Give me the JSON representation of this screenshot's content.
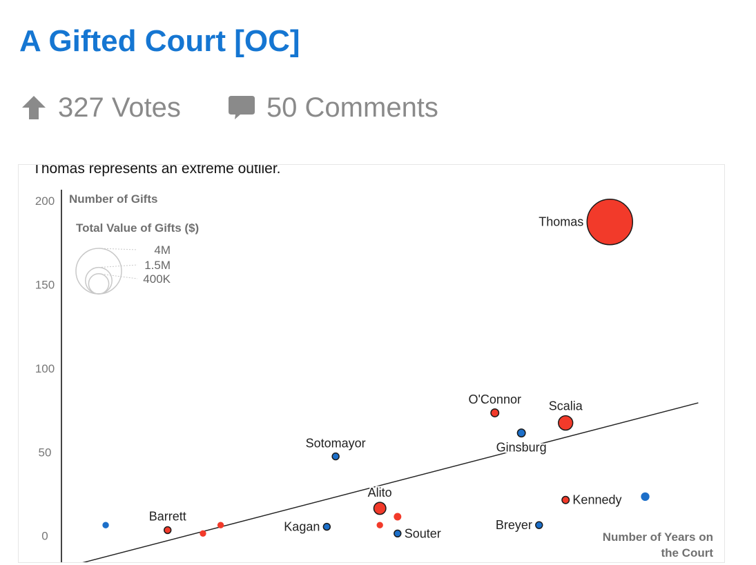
{
  "post": {
    "title": "A Gifted Court [OC]",
    "votes": "327 Votes",
    "comments": "50 Comments",
    "votes_icon": "up-arrow-icon",
    "comments_icon": "speech-bubble-icon"
  },
  "colors": {
    "title": "#1576d2",
    "meta": "#8a8a8a",
    "republican_appointee": "#f23a2a",
    "democratic_appointee": "#1c6fc9",
    "axis": "#444444"
  },
  "chart_data": {
    "type": "scatter",
    "caption": "Thomas represents an extreme outlier.",
    "ylabel": "Number of Gifts",
    "xlabel": "Number of Years on the Court",
    "xlabel_lines": [
      "Number of Years on",
      "the Court"
    ],
    "size_legend_title": "Total Value of Gifts ($)",
    "size_legend": [
      {
        "label": "4M",
        "value": 4000000
      },
      {
        "label": "1.5M",
        "value": 1500000
      },
      {
        "label": "400K",
        "value": 400000
      }
    ],
    "yticks": [
      0,
      50,
      100,
      150,
      200
    ],
    "ylim": [
      -17,
      212
    ],
    "xlim": [
      0,
      37
    ],
    "grid": false,
    "trendline": {
      "x0": 1,
      "y0": -17,
      "x1": 36,
      "y1": 79
    },
    "points": [
      {
        "name": "Thomas",
        "x": 31,
        "y": 187,
        "value": 4000000,
        "party": "R",
        "label_pos": "left"
      },
      {
        "name": "Scalia",
        "x": 28.5,
        "y": 67,
        "value": 400000,
        "party": "R",
        "label_pos": "top"
      },
      {
        "name": "O'Connor",
        "x": 24.5,
        "y": 73,
        "value": 120000,
        "party": "R",
        "label_pos": "top"
      },
      {
        "name": "Ginsburg",
        "x": 26,
        "y": 61,
        "value": 120000,
        "party": "D",
        "label_pos": "bottom"
      },
      {
        "name": "Sotomayor",
        "x": 15.5,
        "y": 47,
        "value": 90000,
        "party": "D",
        "label_pos": "top"
      },
      {
        "name": "Alito",
        "x": 18,
        "y": 16,
        "value": 280000,
        "party": "R",
        "label_pos": "top"
      },
      {
        "name": "Kennedy",
        "x": 28.5,
        "y": 21,
        "value": 100000,
        "party": "R",
        "label_pos": "right"
      },
      {
        "name": "",
        "x": 33,
        "y": 23,
        "value": 140000,
        "party": "D",
        "label_pos": "none"
      },
      {
        "name": "Breyer",
        "x": 27,
        "y": 6,
        "value": 90000,
        "party": "D",
        "label_pos": "left"
      },
      {
        "name": "Souter",
        "x": 19,
        "y": 1,
        "value": 90000,
        "party": "D",
        "label_pos": "right"
      },
      {
        "name": "Kagan",
        "x": 15,
        "y": 5,
        "value": 90000,
        "party": "D",
        "label_pos": "left"
      },
      {
        "name": "Barrett",
        "x": 6,
        "y": 3,
        "value": 90000,
        "party": "R",
        "label_pos": "topleft"
      },
      {
        "name": "",
        "x": 2.5,
        "y": 6,
        "value": 80000,
        "party": "D",
        "label_pos": "none"
      },
      {
        "name": "",
        "x": 8,
        "y": 1,
        "value": 80000,
        "party": "R",
        "label_pos": "none"
      },
      {
        "name": "",
        "x": 9,
        "y": 6,
        "value": 80000,
        "party": "R",
        "label_pos": "none"
      },
      {
        "name": "",
        "x": 18,
        "y": 6,
        "value": 80000,
        "party": "R",
        "label_pos": "none"
      },
      {
        "name": "",
        "x": 19,
        "y": 11,
        "value": 110000,
        "party": "R",
        "label_pos": "none"
      }
    ]
  }
}
